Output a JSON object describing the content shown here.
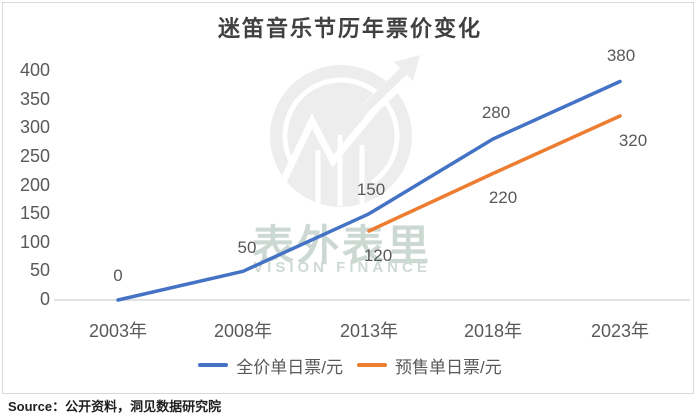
{
  "page": {
    "source_label": "Source：公开资料，洞见数据研究院"
  },
  "watermark": {
    "cjk": "表外表里",
    "latin": "VISION FINANCE"
  },
  "chart_data": {
    "type": "line",
    "title": "迷笛音乐节历年票价变化",
    "categories": [
      "2003年",
      "2008年",
      "2013年",
      "2018年",
      "2023年"
    ],
    "series": [
      {
        "name": "全价单日票/元",
        "color": "#4472C4",
        "values": [
          0,
          50,
          150,
          280,
          380
        ]
      },
      {
        "name": "预售单日票/元",
        "color": "#ED7D31",
        "values": [
          null,
          null,
          120,
          220,
          320
        ]
      }
    ],
    "ylim": [
      0,
      400
    ],
    "yticks": [
      400,
      350,
      300,
      250,
      200,
      150,
      100,
      50,
      0
    ],
    "gridlines": false,
    "data_labels": true,
    "legend_position": "bottom",
    "axis_line_color": "#d9d9d9",
    "label_color": "#595959"
  }
}
